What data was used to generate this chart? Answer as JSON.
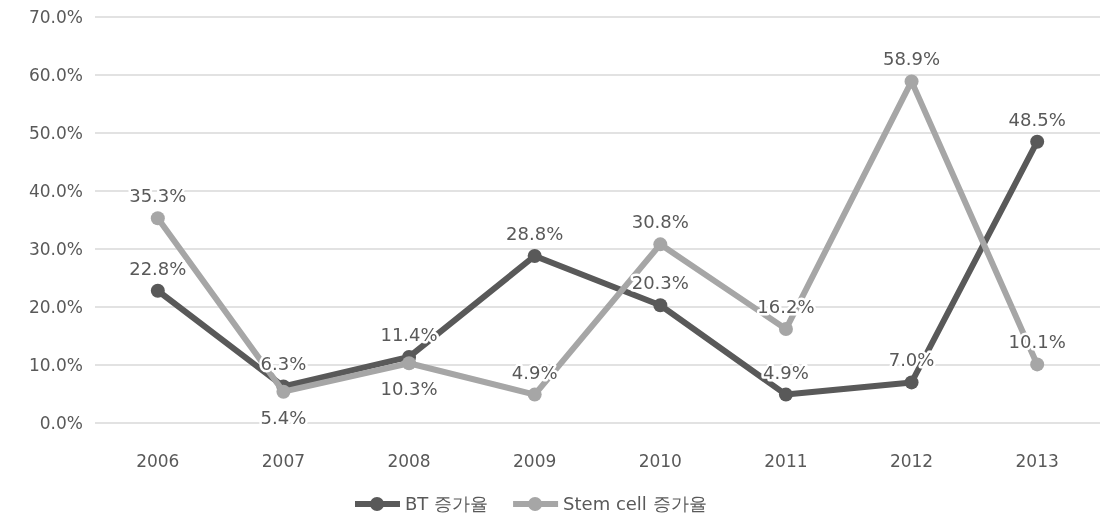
{
  "chart_data": {
    "type": "line",
    "categories": [
      "2006",
      "2007",
      "2008",
      "2009",
      "2010",
      "2011",
      "2012",
      "2013"
    ],
    "series": [
      {
        "name": "BT 증가율",
        "color": "#595959",
        "values": [
          22.8,
          6.3,
          11.4,
          28.8,
          20.3,
          4.9,
          7.0,
          48.5
        ],
        "value_labels": [
          "22.8%",
          "6.3%",
          "11.4%",
          "28.8%",
          "20.3%",
          "4.9%",
          "7.0%",
          "48.5%"
        ]
      },
      {
        "name": "Stem cell 증가율",
        "color": "#a6a6a6",
        "values": [
          35.3,
          5.4,
          10.3,
          4.9,
          30.8,
          16.2,
          58.9,
          10.1
        ],
        "value_labels": [
          "35.3%",
          "5.4%",
          "10.3%",
          "4.9%",
          "30.8%",
          "16.2%",
          "58.9%",
          "10.1%"
        ]
      }
    ],
    "ylim": [
      0,
      70
    ],
    "yticks": [
      {
        "value": 0,
        "label": "0.0%"
      },
      {
        "value": 10,
        "label": "10.0%"
      },
      {
        "value": 20,
        "label": "20.0%"
      },
      {
        "value": 30,
        "label": "30.0%"
      },
      {
        "value": 40,
        "label": "40.0%"
      },
      {
        "value": 50,
        "label": "50.0%"
      },
      {
        "value": 60,
        "label": "60.0%"
      },
      {
        "value": 70,
        "label": "70.0%"
      }
    ],
    "grid": "y",
    "legend": "bottom",
    "marker": "circle",
    "line_style": "solid"
  }
}
